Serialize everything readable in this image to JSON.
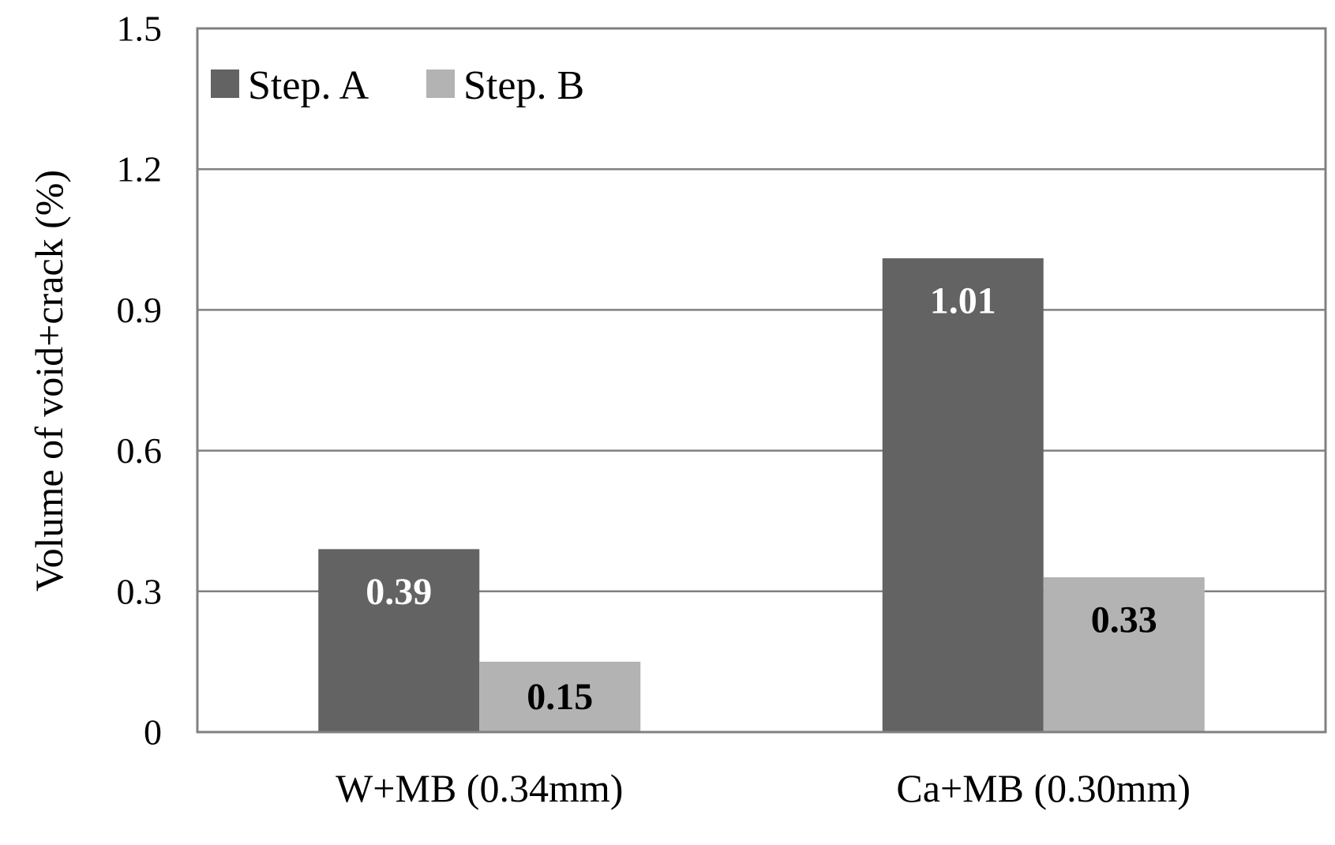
{
  "chart_data": {
    "type": "bar",
    "categories": [
      "W+MB (0.34mm)",
      "Ca+MB (0.30mm)"
    ],
    "series": [
      {
        "name": "Step. A",
        "values": [
          0.39,
          1.01
        ],
        "color": "#636363",
        "label_color": "#ffffff"
      },
      {
        "name": "Step. B",
        "values": [
          0.15,
          0.33
        ],
        "color": "#b3b3b3",
        "label_color": "#000000"
      }
    ],
    "data_labels": [
      [
        "0.39",
        "1.01"
      ],
      [
        "0.15",
        "0.33"
      ]
    ],
    "ylabel": "Volume of  void+crack (%)",
    "ylim": [
      0,
      1.5
    ],
    "yticks": [
      0,
      0.3,
      0.6,
      0.9,
      1.2,
      1.5
    ],
    "ytick_labels": [
      "0",
      "0.3",
      "0.6",
      "0.9",
      "1.2",
      "1.5"
    ],
    "grid": true,
    "legend_position": "top-left"
  }
}
